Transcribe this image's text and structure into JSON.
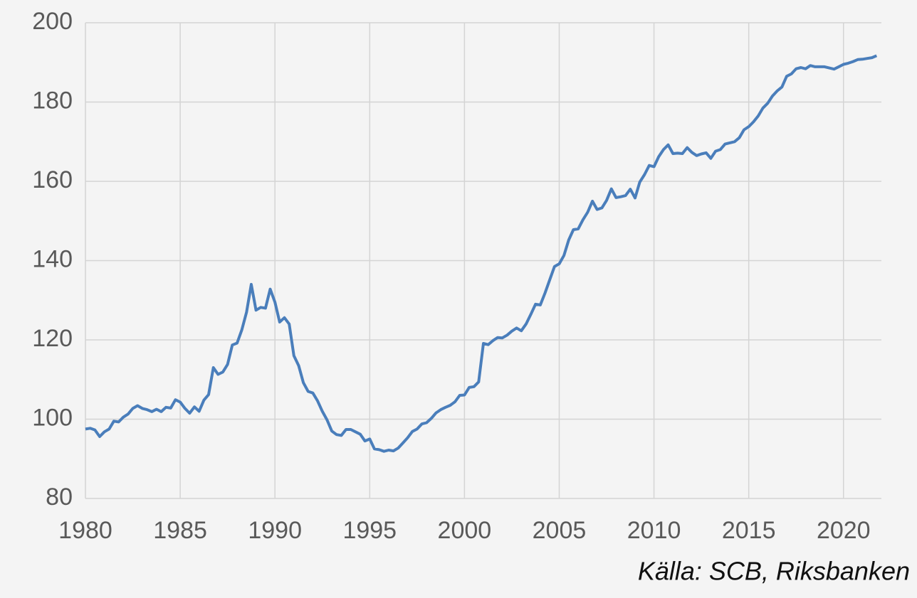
{
  "chart_data": {
    "type": "line",
    "source": "Källa: SCB, Riksbanken",
    "color": "#4a7ebb",
    "grid": true,
    "xlim": [
      1980,
      2022
    ],
    "xticks": [
      1980,
      1985,
      1990,
      1995,
      2000,
      2005,
      2010,
      2015,
      2020
    ],
    "ylim": [
      80,
      200
    ],
    "yticks": [
      80,
      100,
      120,
      140,
      160,
      180,
      200
    ],
    "x": [
      1980,
      1980.25,
      1980.5,
      1980.75,
      1981,
      1981.25,
      1981.5,
      1981.75,
      1982,
      1982.25,
      1982.5,
      1982.75,
      1983,
      1983.25,
      1983.5,
      1983.75,
      1984,
      1984.25,
      1984.5,
      1984.75,
      1985,
      1985.25,
      1985.5,
      1985.75,
      1986,
      1986.25,
      1986.5,
      1986.75,
      1987,
      1987.25,
      1987.5,
      1987.75,
      1988,
      1988.25,
      1988.5,
      1988.75,
      1989,
      1989.25,
      1989.5,
      1989.75,
      1990,
      1990.25,
      1990.5,
      1990.75,
      1991,
      1991.25,
      1991.5,
      1991.75,
      1992,
      1992.25,
      1992.5,
      1992.75,
      1993,
      1993.25,
      1993.5,
      1993.75,
      1994,
      1994.25,
      1994.5,
      1994.75,
      1995,
      1995.25,
      1995.5,
      1995.75,
      1996,
      1996.25,
      1996.5,
      1996.75,
      1997,
      1997.25,
      1997.5,
      1997.75,
      1998,
      1998.25,
      1998.5,
      1998.75,
      1999,
      1999.25,
      1999.5,
      1999.75,
      2000,
      2000.25,
      2000.5,
      2000.75,
      2001,
      2001.25,
      2001.5,
      2001.75,
      2002,
      2002.25,
      2002.5,
      2002.75,
      2003,
      2003.25,
      2003.5,
      2003.75,
      2004,
      2004.25,
      2004.5,
      2004.75,
      2005,
      2005.25,
      2005.5,
      2005.75,
      2006,
      2006.25,
      2006.5,
      2006.75,
      2007,
      2007.25,
      2007.5,
      2007.75,
      2008,
      2008.25,
      2008.5,
      2008.75,
      2009,
      2009.25,
      2009.5,
      2009.75,
      2010,
      2010.25,
      2010.5,
      2010.75,
      2011,
      2011.25,
      2011.5,
      2011.75,
      2012,
      2012.25,
      2012.5,
      2012.75,
      2013,
      2013.25,
      2013.5,
      2013.75,
      2014,
      2014.25,
      2014.5,
      2014.75,
      2015,
      2015.25,
      2015.5,
      2015.75,
      2016,
      2016.25,
      2016.5,
      2016.75,
      2017,
      2017.25,
      2017.5,
      2017.75,
      2018,
      2018.25,
      2018.5,
      2018.75,
      2019,
      2019.25,
      2019.5,
      2019.75,
      2020,
      2020.25,
      2020.5,
      2020.75,
      2021,
      2021.25,
      2021.5,
      2021.75
    ],
    "values": [
      97.5,
      97.7,
      97.3,
      95.6,
      96.8,
      97.5,
      99.5,
      99.3,
      100.5,
      101.3,
      102.7,
      103.4,
      102.7,
      102.4,
      101.9,
      102.5,
      101.9,
      103,
      102.8,
      104.9,
      104.3,
      102.7,
      101.5,
      103.1,
      102,
      104.8,
      106.2,
      113,
      111.3,
      111.9,
      113.8,
      118.7,
      119.2,
      122.5,
      127,
      134,
      127.5,
      128.2,
      128,
      132.8,
      129.5,
      124.5,
      125.6,
      124,
      116,
      113.5,
      109.2,
      107,
      106.6,
      104.6,
      102,
      99.8,
      97,
      96.1,
      95.9,
      97.4,
      97.4,
      96.8,
      96.2,
      94.5,
      95,
      92.5,
      92.3,
      91.9,
      92.2,
      92,
      92.7,
      94,
      95.3,
      96.9,
      97.5,
      98.8,
      99.1,
      100.2,
      101.6,
      102.4,
      103,
      103.5,
      104.4,
      106,
      106.1,
      108,
      108.2,
      109.4,
      119.1,
      118.8,
      119.8,
      120.6,
      120.5,
      121.2,
      122.2,
      123,
      122.3,
      124,
      126.4,
      129,
      128.8,
      131.8,
      135.2,
      138.5,
      139.2,
      141.3,
      145.2,
      147.8,
      148,
      150.3,
      152.2,
      155,
      152.9,
      153.3,
      155.2,
      158.1,
      155.9,
      156.1,
      156.4,
      158,
      155.8,
      159.8,
      161.7,
      164,
      163.7,
      166.2,
      168,
      169.2,
      167,
      167.1,
      167,
      168.5,
      167.3,
      166.5,
      166.9,
      167.2,
      165.8,
      167.6,
      168,
      169.4,
      169.7,
      170,
      171,
      173,
      173.8,
      175,
      176.5,
      178.5,
      179.7,
      181.5,
      182.8,
      183.8,
      186.5,
      187.1,
      188.4,
      188.7,
      188.4,
      189.2,
      188.9,
      188.9,
      188.9,
      188.6,
      188.3,
      188.9,
      189.5,
      189.8,
      190.2,
      190.7,
      190.8,
      191,
      191.2,
      191.7
    ]
  }
}
